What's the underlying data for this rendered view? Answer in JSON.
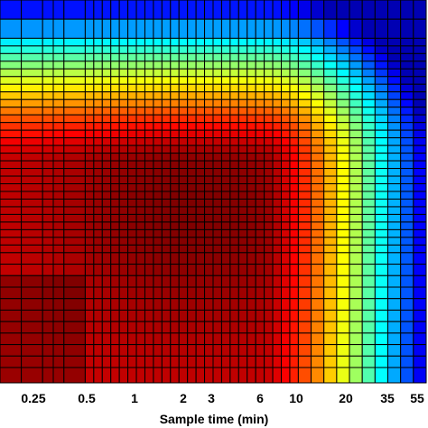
{
  "chart_data": {
    "type": "heatmap",
    "xlabel": "Sample time (min)",
    "ylabel": "",
    "title": "",
    "x_tick_labels": [
      "0.25",
      "0.5",
      "1",
      "2",
      "3",
      "6",
      "10",
      "20",
      "35",
      "55"
    ],
    "x_scale": "log",
    "grid": true,
    "cell_borders": true,
    "colormap": "jet",
    "value_range": [
      0,
      1
    ],
    "x_breaks": [
      0.05,
      0.1,
      0.125,
      0.15,
      0.2,
      0.22,
      0.24,
      0.26,
      0.28,
      0.3,
      0.32,
      0.34,
      0.36,
      0.38,
      0.4,
      0.42,
      0.44,
      0.46,
      0.48,
      0.5,
      0.52,
      0.54,
      0.56,
      0.58,
      0.6,
      0.62,
      0.64,
      0.66,
      0.68,
      0.7,
      0.73,
      0.76,
      0.79,
      0.82,
      0.85,
      0.88,
      0.91,
      0.94,
      0.97,
      1.0
    ],
    "y_breaks": [
      0.05,
      0.1,
      0.12,
      0.14,
      0.16,
      0.18,
      0.2,
      0.22,
      0.24,
      0.26,
      0.28,
      0.3,
      0.32,
      0.34,
      0.36,
      0.38,
      0.4,
      0.42,
      0.44,
      0.46,
      0.48,
      0.5,
      0.52,
      0.54,
      0.56,
      0.58,
      0.6,
      0.62,
      0.64,
      0.66,
      0.69,
      0.72,
      0.75,
      0.78,
      0.81,
      0.84,
      0.87,
      0.9,
      0.93,
      0.96,
      1.0
    ]
  }
}
